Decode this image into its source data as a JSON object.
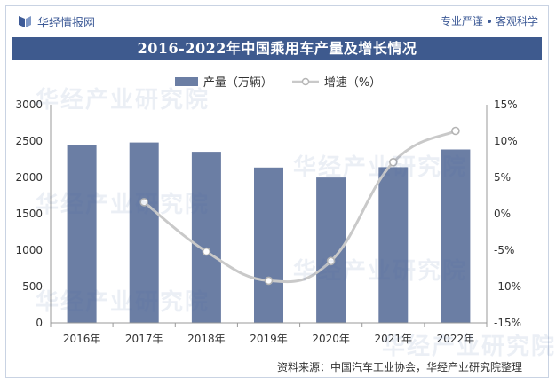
{
  "header": {
    "brand": "华经情报网",
    "slogan_left": "专业严谨",
    "slogan_right": "客观科学"
  },
  "title": "2016-2022年中国乘用车产量及增长情况",
  "watermark_text": "华经产业研究院",
  "source": "资料来源：中国汽车工业协会，华经产业研究院整理",
  "colors": {
    "bar": "#6b7ea4",
    "line": "#c9c9c9",
    "title_bg": "#3e5a8e",
    "brand": "#3e5b97"
  },
  "chart_data": {
    "type": "bar+line",
    "categories": [
      "2016年",
      "2017年",
      "2018年",
      "2019年",
      "2020年",
      "2021年",
      "2022年"
    ],
    "series": [
      {
        "name": "产量（万辆）",
        "type": "bar",
        "axis": "left",
        "values": [
          2442,
          2481,
          2353,
          2136,
          1999,
          2141,
          2384
        ]
      },
      {
        "name": "增速（%）",
        "type": "line",
        "axis": "right",
        "values": [
          null,
          1.6,
          -5.2,
          -9.2,
          -6.5,
          7.1,
          11.4
        ]
      }
    ],
    "y_left": {
      "min": 0,
      "max": 3000,
      "ticks": [
        0,
        500,
        1000,
        1500,
        2000,
        2500,
        3000
      ]
    },
    "y_right": {
      "min": -15,
      "max": 15,
      "ticks": [
        -15,
        -10,
        -5,
        0,
        5,
        10,
        15
      ],
      "tick_labels": [
        "-15%",
        "-10%",
        "-5%",
        "0%",
        "5%",
        "10%",
        "15%"
      ]
    },
    "legend": "top-center",
    "grid": false
  }
}
